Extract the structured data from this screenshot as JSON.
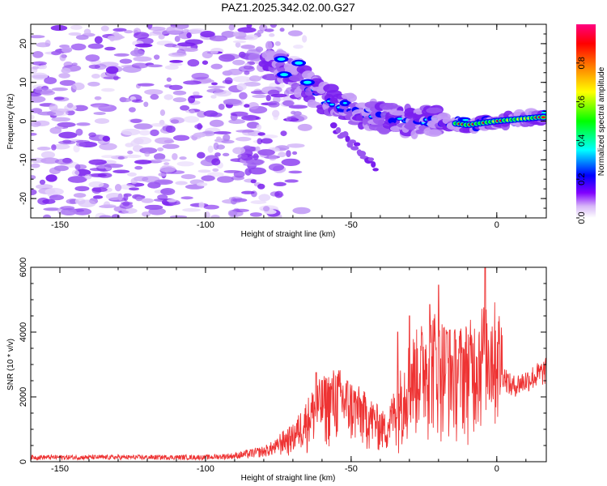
{
  "title": "PAZ1.2025.342.02.00.G27",
  "chart_data": [
    {
      "type": "heatmap",
      "xlabel": "Height of straight line (km)",
      "ylabel": "Frequency (Hz)",
      "xlim": [
        -160,
        17
      ],
      "ylim": [
        -25,
        25
      ],
      "xticks": [
        -150,
        -100,
        -50,
        0
      ],
      "yticks": [
        -20,
        -10,
        0,
        10,
        20
      ],
      "colorbar": {
        "label": "Normalized spectral amplitude",
        "range": [
          0,
          1
        ],
        "ticks": [
          0.0,
          0.2,
          0.4,
          0.6,
          0.8
        ],
        "tick_labels": [
          "0.0",
          "0.2",
          "0.4",
          "0.6",
          "0.8"
        ],
        "colors": [
          "#ffffff",
          "#8000ff",
          "#0000ff",
          "#00ffff",
          "#00ff00",
          "#ffff00",
          "#ff8000",
          "#ff0000",
          "#ff0080"
        ]
      },
      "ridge": [
        {
          "x": -78,
          "f": 17
        },
        {
          "x": -70,
          "f": 12
        },
        {
          "x": -60,
          "f": 6
        },
        {
          "x": -50,
          "f": 3
        },
        {
          "x": -40,
          "f": 1
        },
        {
          "x": -30,
          "f": 0
        },
        {
          "x": -20,
          "f": 0
        },
        {
          "x": -10,
          "f": -1
        },
        {
          "x": 0,
          "f": 0
        },
        {
          "x": 15,
          "f": 1
        }
      ],
      "branch_lower": [
        {
          "x": -55,
          "f": -2
        },
        {
          "x": -45,
          "f": -9
        },
        {
          "x": -42,
          "f": -12
        }
      ]
    },
    {
      "type": "line",
      "xlabel": "Height of straight line (km)",
      "ylabel": "SNR (10 * v/v)",
      "xlim": [
        -160,
        17
      ],
      "ylim": [
        0,
        6000
      ],
      "xticks": [
        -150,
        -100,
        -50,
        0
      ],
      "yticks": [
        0,
        2000,
        4000,
        6000
      ],
      "color": "#ee3333",
      "envelope": [
        {
          "x": -160,
          "y": 150
        },
        {
          "x": -100,
          "y": 150
        },
        {
          "x": -90,
          "y": 200
        },
        {
          "x": -80,
          "y": 350
        },
        {
          "x": -70,
          "y": 700
        },
        {
          "x": -62,
          "y": 1500
        },
        {
          "x": -55,
          "y": 1800
        },
        {
          "x": -45,
          "y": 1300
        },
        {
          "x": -38,
          "y": 900
        },
        {
          "x": -30,
          "y": 2300
        },
        {
          "x": -22,
          "y": 2900
        },
        {
          "x": -15,
          "y": 2500
        },
        {
          "x": -8,
          "y": 2700
        },
        {
          "x": -4,
          "y": 3100
        },
        {
          "x": 0,
          "y": 3000
        },
        {
          "x": 5,
          "y": 2300
        },
        {
          "x": 10,
          "y": 2500
        },
        {
          "x": 17,
          "y": 2800
        }
      ],
      "peaks": [
        {
          "x": -4,
          "y": 6000
        },
        {
          "x": -20,
          "y": 5450
        },
        {
          "x": -23,
          "y": 4850
        },
        {
          "x": -30,
          "y": 4500
        },
        {
          "x": -17,
          "y": 4000
        },
        {
          "x": -62,
          "y": 2750
        },
        {
          "x": -34,
          "y": 4000
        }
      ]
    }
  ]
}
